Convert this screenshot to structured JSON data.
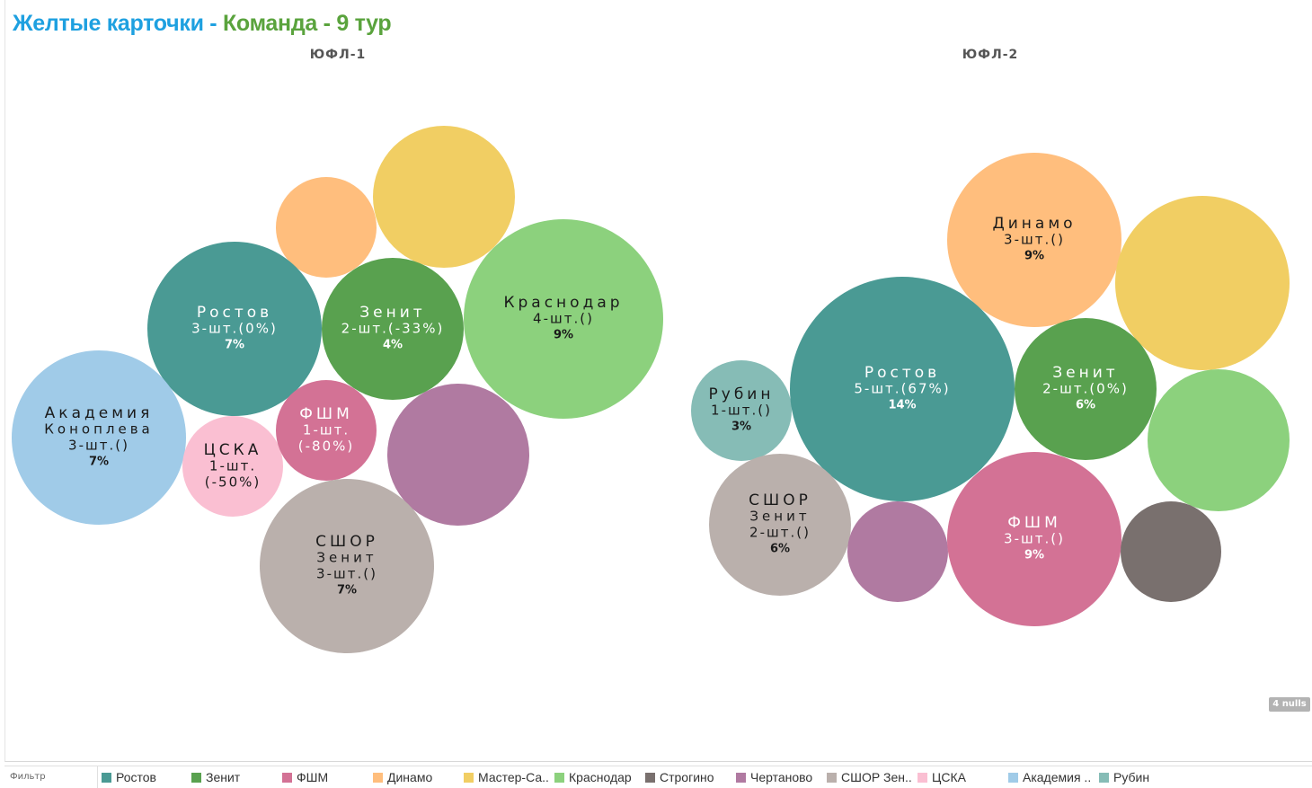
{
  "title": {
    "part1": "Желтые карточки -",
    "part2": "Команда - 9 тур"
  },
  "nulls_label": "4 nulls",
  "legend": {
    "filter_label": "Фильтр",
    "items": [
      {
        "label": "Ростов",
        "color": "#4a9a94"
      },
      {
        "label": "Зенит",
        "color": "#59a14f"
      },
      {
        "label": "ФШМ",
        "color": "#d37295"
      },
      {
        "label": "Динамо",
        "color": "#ffbe7d"
      },
      {
        "label": "Мастер-Са..",
        "color": "#f1ce63"
      },
      {
        "label": "Краснодар",
        "color": "#8cd17d"
      },
      {
        "label": "Строгино",
        "color": "#79706e"
      },
      {
        "label": "Чертаново",
        "color": "#b07aa1"
      },
      {
        "label": "СШОР Зен..",
        "color": "#bab0ac"
      },
      {
        "label": "ЦСКА",
        "color": "#fabfd2"
      },
      {
        "label": "Академия ..",
        "color": "#a0cbe8"
      },
      {
        "label": "Рубин",
        "color": "#86bcb6"
      }
    ]
  },
  "chart_data": [
    {
      "type": "packed-bubble",
      "title": "ЮФЛ-1",
      "bubbles": [
        {
          "team": "Мастер-Са..",
          "color": "#f1ce63",
          "lines": []
        },
        {
          "team": "Динамо",
          "color": "#ffbe7d",
          "lines": []
        },
        {
          "team": "Краснодар",
          "color": "#8cd17d",
          "lines": [
            "Краснодар",
            "4-шт.()",
            "9%"
          ]
        },
        {
          "team": "Ростов",
          "color": "#4a9a94",
          "lines": [
            "Ростов",
            "3-шт.(0%)",
            "7%"
          ]
        },
        {
          "team": "Зенит",
          "color": "#59a14f",
          "lines": [
            "Зенит",
            "2-шт.(-33%)",
            "4%"
          ]
        },
        {
          "team": "Академия ..",
          "color": "#a0cbe8",
          "lines": [
            "Академия",
            "Коноплева",
            "3-шт.()",
            "7%"
          ]
        },
        {
          "team": "ЦСКА",
          "color": "#fabfd2",
          "lines": [
            "ЦСКА",
            "1-шт.",
            "(-50%)"
          ]
        },
        {
          "team": "ФШМ",
          "color": "#d37295",
          "lines": [
            "ФШМ",
            "1-шт.",
            "(-80%)"
          ]
        },
        {
          "team": "Чертаново",
          "color": "#b07aa1",
          "lines": []
        },
        {
          "team": "СШОР Зен..",
          "color": "#bab0ac",
          "lines": [
            "СШОР",
            "Зенит",
            "3-шт.()",
            "7%"
          ]
        }
      ]
    },
    {
      "type": "packed-bubble",
      "title": "ЮФЛ-2",
      "bubbles": [
        {
          "team": "Динамо",
          "color": "#ffbe7d",
          "lines": [
            "Динамо",
            "3-шт.()",
            "9%"
          ]
        },
        {
          "team": "Мастер-Са..",
          "color": "#f1ce63",
          "lines": []
        },
        {
          "team": "Рубин",
          "color": "#86bcb6",
          "lines": [
            "Рубин",
            "1-шт.()",
            "3%"
          ]
        },
        {
          "team": "Ростов",
          "color": "#4a9a94",
          "lines": [
            "Ростов",
            "5-шт.(67%)",
            "14%"
          ]
        },
        {
          "team": "Зенит",
          "color": "#59a14f",
          "lines": [
            "Зенит",
            "2-шт.(0%)",
            "6%"
          ]
        },
        {
          "team": "Краснодар",
          "color": "#8cd17d",
          "lines": []
        },
        {
          "team": "СШОР Зен..",
          "color": "#bab0ac",
          "lines": [
            "СШОР",
            "Зенит",
            "2-шт.()",
            "6%"
          ]
        },
        {
          "team": "Чертаново",
          "color": "#b07aa1",
          "lines": []
        },
        {
          "team": "ФШМ",
          "color": "#d37295",
          "lines": [
            "ФШМ",
            "3-шт.()",
            "9%"
          ]
        },
        {
          "team": "Строгино",
          "color": "#79706e",
          "lines": []
        }
      ]
    }
  ]
}
